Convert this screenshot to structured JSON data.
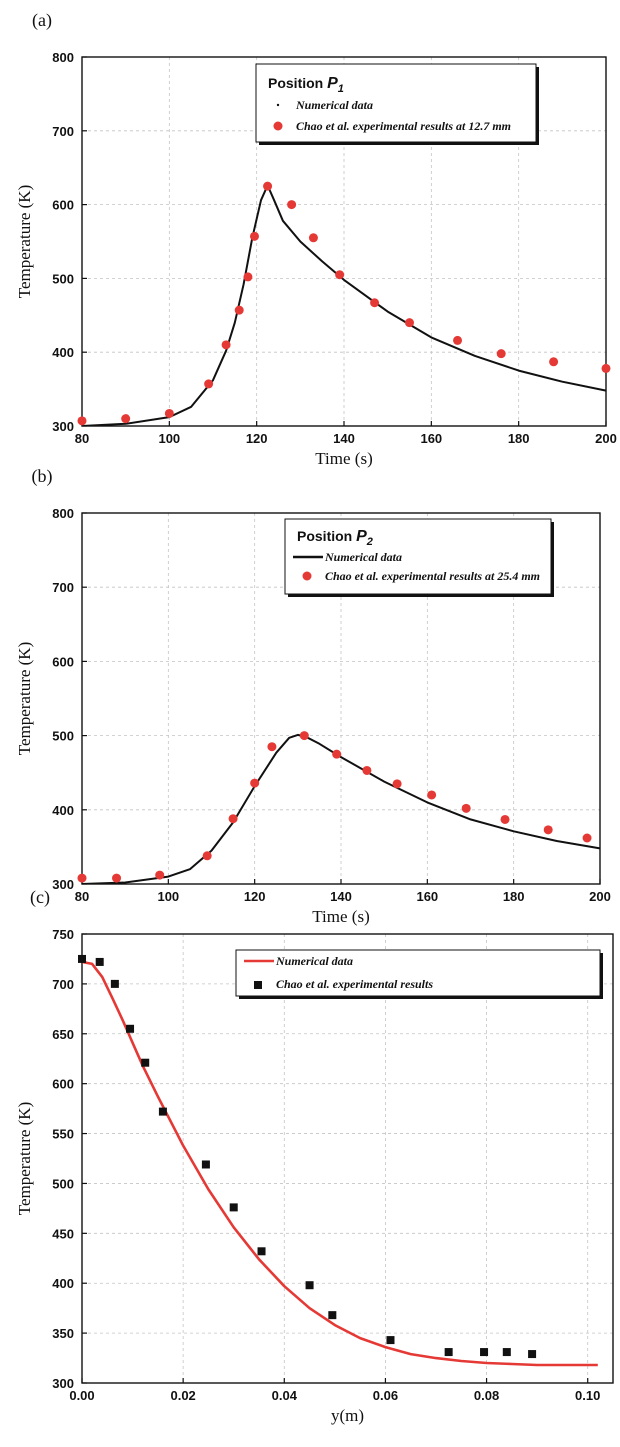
{
  "chart_data": [
    {
      "panel_label": "(a)",
      "type": "line",
      "xlabel": "Time (s)",
      "ylabel": "Temperature (K)",
      "xlim": [
        80,
        200
      ],
      "ylim": [
        300,
        800
      ],
      "xticks": [
        80,
        100,
        120,
        140,
        160,
        180,
        200
      ],
      "yticks": [
        300,
        400,
        500,
        600,
        700,
        800
      ],
      "grid": true,
      "legend_position": "top-right",
      "legend_title_main": "Position ",
      "legend_title_sub": "P",
      "legend_title_index": "1",
      "series": [
        {
          "name": "Numerical data",
          "style": "line",
          "color": "#111111",
          "x": [
            80,
            90,
            100,
            105,
            110,
            113,
            115,
            117,
            119,
            121,
            122.5,
            124,
            126,
            130,
            135,
            140,
            150,
            160,
            170,
            180,
            190,
            200
          ],
          "y": [
            300,
            303,
            312,
            326,
            362,
            402,
            440,
            492,
            555,
            606,
            626,
            606,
            578,
            550,
            523,
            498,
            455,
            420,
            395,
            375,
            360,
            348
          ]
        },
        {
          "name": "Chao et al. experimental results at 12.7 mm",
          "style": "marker",
          "marker": "circle",
          "color": "#e53935",
          "x": [
            80,
            90,
            100,
            109,
            113,
            116,
            118,
            119.5,
            122.5,
            128,
            133,
            139,
            147,
            155,
            166,
            176,
            188,
            200
          ],
          "y": [
            307,
            310,
            317,
            357,
            410,
            457,
            502,
            557,
            625,
            600,
            555,
            505,
            467,
            440,
            416,
            398,
            387,
            378
          ]
        }
      ]
    },
    {
      "panel_label": "(b)",
      "type": "line",
      "xlabel": "Time (s)",
      "ylabel": "Temperature (K)",
      "xlim": [
        80,
        200
      ],
      "ylim": [
        300,
        800
      ],
      "xticks": [
        80,
        100,
        120,
        140,
        160,
        180,
        200
      ],
      "yticks": [
        300,
        400,
        500,
        600,
        700,
        800
      ],
      "grid": true,
      "legend_position": "top-right",
      "legend_title_main": "Position ",
      "legend_title_sub": "P",
      "legend_title_index": "2",
      "series": [
        {
          "name": "Numerical data",
          "style": "line",
          "color": "#111111",
          "x": [
            80,
            90,
            100,
            105,
            110,
            115,
            120,
            125,
            128,
            130,
            132,
            135,
            140,
            150,
            160,
            170,
            180,
            190,
            200
          ],
          "y": [
            300,
            302,
            310,
            320,
            345,
            383,
            432,
            477,
            497,
            501,
            498,
            489,
            471,
            438,
            410,
            387,
            371,
            358,
            348
          ]
        },
        {
          "name": "Chao et al. experimental results at 25.4 mm",
          "style": "marker",
          "marker": "circle",
          "color": "#e53935",
          "x": [
            80,
            88,
            98,
            109,
            115,
            120,
            124,
            131.5,
            139,
            146,
            153,
            161,
            169,
            178,
            188,
            197
          ],
          "y": [
            308,
            308,
            312,
            338,
            388,
            436,
            485,
            500,
            475,
            453,
            435,
            420,
            402,
            387,
            373,
            362
          ]
        }
      ]
    },
    {
      "panel_label": "(c)",
      "type": "line",
      "xlabel": "y(m)",
      "ylabel": "Temperature (K)",
      "xlim": [
        0.0,
        0.105
      ],
      "ylim": [
        300,
        750
      ],
      "xticks": [
        0.0,
        0.02,
        0.04,
        0.06,
        0.08,
        0.1
      ],
      "xtick_labels": [
        "0.00",
        "0.02",
        "0.04",
        "0.06",
        "0.08",
        "0.10"
      ],
      "yticks": [
        300,
        350,
        400,
        450,
        500,
        550,
        600,
        650,
        700,
        750
      ],
      "grid": true,
      "legend_position": "top-right",
      "series": [
        {
          "name": "Numerical data",
          "style": "line",
          "color": "#e53935",
          "x": [
            0.0,
            0.002,
            0.004,
            0.006,
            0.008,
            0.01,
            0.012,
            0.015,
            0.02,
            0.025,
            0.03,
            0.035,
            0.04,
            0.045,
            0.05,
            0.055,
            0.06,
            0.065,
            0.07,
            0.075,
            0.08,
            0.085,
            0.09,
            0.095,
            0.1,
            0.102
          ],
          "y": [
            722,
            720,
            707,
            686,
            664,
            641,
            618,
            587,
            538,
            494,
            456,
            424,
            397,
            375,
            358,
            345,
            336,
            329,
            325,
            322,
            320,
            319,
            318,
            318,
            318,
            318
          ]
        },
        {
          "name": "Chao et al. experimental results",
          "style": "marker",
          "marker": "square",
          "color": "#111111",
          "x": [
            0.0,
            0.0035,
            0.0065,
            0.0095,
            0.0125,
            0.016,
            0.0245,
            0.03,
            0.0355,
            0.045,
            0.0495,
            0.061,
            0.0725,
            0.0795,
            0.084,
            0.089
          ],
          "y": [
            725,
            722,
            700,
            655,
            621,
            572,
            519,
            476,
            432,
            398,
            368,
            343,
            331,
            331,
            331,
            329
          ]
        }
      ]
    }
  ]
}
